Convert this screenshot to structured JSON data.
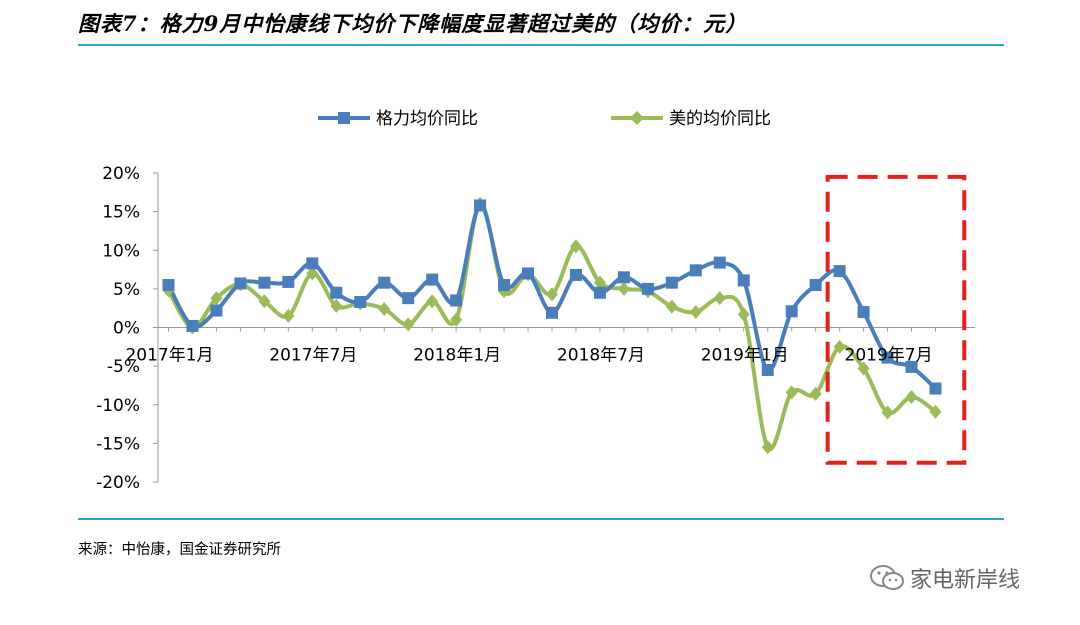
{
  "header": {
    "title": "图表7：格力9月中怡康线下均价下降幅度显著超过美的（均价：元）"
  },
  "footer": {
    "source": "来源：中怡康，国金证券研究所"
  },
  "watermark": {
    "text": "家电新岸线",
    "icon": "wechat-icon"
  },
  "colors": {
    "gree": "#4a7ebb",
    "midea": "#9bbb59",
    "highlight_box": "#e3201b",
    "rule": "#2e9fd1"
  },
  "chart_data": {
    "type": "line",
    "x": [
      "2017-01",
      "2017-02",
      "2017-03",
      "2017-04",
      "2017-05",
      "2017-06",
      "2017-07",
      "2017-08",
      "2017-09",
      "2017-10",
      "2017-11",
      "2017-12",
      "2018-01",
      "2018-02",
      "2018-03",
      "2018-04",
      "2018-05",
      "2018-06",
      "2018-07",
      "2018-08",
      "2018-09",
      "2018-10",
      "2018-11",
      "2018-12",
      "2019-01",
      "2019-02",
      "2019-03",
      "2019-04",
      "2019-05",
      "2019-06",
      "2019-07",
      "2019-08",
      "2019-09"
    ],
    "x_tick_labels": [
      {
        "index": 0,
        "label": "2017年1月"
      },
      {
        "index": 6,
        "label": "2017年7月"
      },
      {
        "index": 12,
        "label": "2018年1月"
      },
      {
        "index": 18,
        "label": "2018年7月"
      },
      {
        "index": 24,
        "label": "2019年1月"
      },
      {
        "index": 30,
        "label": "2019年7月"
      }
    ],
    "y_ticks": [
      "20%",
      "15%",
      "10%",
      "5%",
      "0%",
      "-5%",
      "-10%",
      "-15%",
      "-20%"
    ],
    "ylim": [
      -20,
      20
    ],
    "series": [
      {
        "name": "格力均价同比",
        "marker": "square",
        "values": [
          5.5,
          0.2,
          2.2,
          5.7,
          5.8,
          5.9,
          8.3,
          4.5,
          3.3,
          5.8,
          3.8,
          6.2,
          3.5,
          15.8,
          5.5,
          7.0,
          1.9,
          6.8,
          4.5,
          6.5,
          5.0,
          5.8,
          7.4,
          8.4,
          6.1,
          -5.5,
          2.1,
          5.5,
          7.3,
          2.0,
          -3.9,
          -5.1,
          -7.9
        ]
      },
      {
        "name": "美的均价同比",
        "marker": "diamond",
        "values": [
          4.8,
          0.0,
          3.8,
          5.6,
          3.4,
          1.5,
          7.0,
          2.8,
          3.1,
          2.4,
          0.4,
          3.4,
          1.0,
          16.0,
          4.7,
          6.9,
          4.3,
          10.5,
          5.8,
          5.0,
          4.7,
          2.7,
          2.0,
          3.8,
          1.7,
          -15.5,
          -8.4,
          -8.6,
          -2.5,
          -5.3,
          -11.0,
          -9.0,
          -10.9
        ]
      }
    ],
    "highlight_box": {
      "from_index": 27.5,
      "to_index": 33.2,
      "y_top": 19.5,
      "y_bottom": -17.5
    },
    "legend_position": "top-center",
    "grid": false
  }
}
